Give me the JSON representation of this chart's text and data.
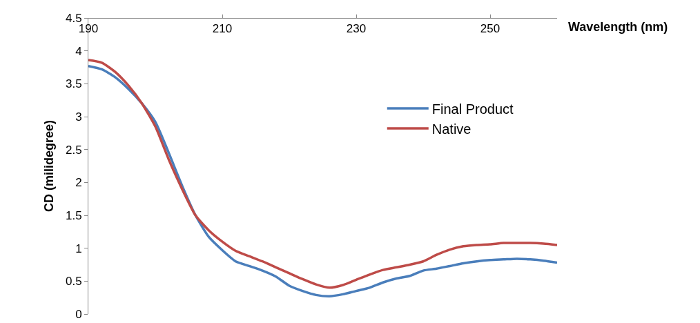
{
  "chart_data": {
    "type": "line",
    "xlabel": "Wavelength (nm)",
    "ylabel": "CD (milidegree)",
    "x": [
      190,
      192,
      194,
      196,
      198,
      200,
      202,
      204,
      206,
      208,
      210,
      212,
      214,
      216,
      218,
      220,
      222,
      224,
      226,
      228,
      230,
      232,
      234,
      236,
      238,
      240,
      242,
      244,
      246,
      248,
      250,
      252,
      254,
      256,
      258,
      260
    ],
    "series": [
      {
        "name": "Final Product",
        "color": "#4a7ebb",
        "values": [
          3.77,
          3.72,
          3.6,
          3.42,
          3.2,
          2.92,
          2.45,
          1.95,
          1.5,
          1.17,
          0.97,
          0.8,
          0.73,
          0.66,
          0.57,
          0.43,
          0.35,
          0.29,
          0.27,
          0.3,
          0.35,
          0.4,
          0.48,
          0.54,
          0.58,
          0.66,
          0.69,
          0.73,
          0.77,
          0.8,
          0.82,
          0.83,
          0.84,
          0.83,
          0.81,
          0.78
        ]
      },
      {
        "name": "Native",
        "color": "#be4b48",
        "values": [
          3.86,
          3.82,
          3.68,
          3.47,
          3.2,
          2.85,
          2.35,
          1.9,
          1.5,
          1.27,
          1.1,
          0.96,
          0.88,
          0.8,
          0.71,
          0.62,
          0.53,
          0.45,
          0.4,
          0.44,
          0.52,
          0.6,
          0.67,
          0.71,
          0.75,
          0.8,
          0.9,
          0.98,
          1.03,
          1.05,
          1.06,
          1.08,
          1.08,
          1.08,
          1.07,
          1.05
        ]
      }
    ],
    "xlim": [
      190,
      260
    ],
    "xticks": [
      190,
      210,
      230,
      250
    ],
    "ylim": [
      0,
      4.5
    ],
    "yticks": [
      0,
      0.5,
      1,
      1.5,
      2,
      2.5,
      3,
      3.5,
      4,
      4.5
    ],
    "grid": false,
    "legend": "right",
    "marker": "none",
    "line_style": "solid"
  }
}
